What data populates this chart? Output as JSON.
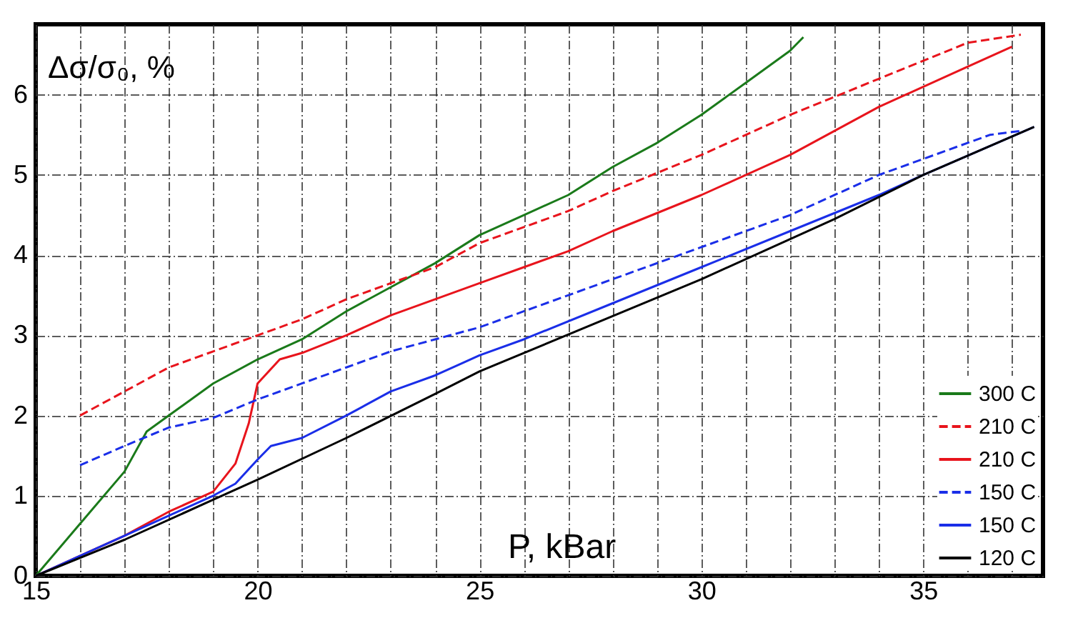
{
  "chart_data": {
    "type": "line",
    "xlabel": "P, kBar",
    "ylabel": "Δσ/σ₀, %",
    "xlim": [
      15,
      37.7
    ],
    "ylim": [
      0,
      6.88
    ],
    "xticks": [
      15,
      {
        "value": 16,
        "label": null
      },
      {
        "value": 17,
        "label": null
      },
      {
        "value": 18,
        "label": null
      },
      {
        "value": 19,
        "label": null
      },
      20,
      {
        "value": 21,
        "label": null
      },
      {
        "value": 22,
        "label": null
      },
      {
        "value": 23,
        "label": null
      },
      {
        "value": 24,
        "label": null
      },
      25,
      {
        "value": 26,
        "label": null
      },
      {
        "value": 27,
        "label": null
      },
      {
        "value": 28,
        "label": null
      },
      {
        "value": 29,
        "label": null
      },
      30,
      {
        "value": 31,
        "label": null
      },
      {
        "value": 32,
        "label": null
      },
      {
        "value": 33,
        "label": null
      },
      {
        "value": 34,
        "label": null
      },
      35,
      {
        "value": 36,
        "label": null
      },
      {
        "value": 37,
        "label": null
      }
    ],
    "yticks": [
      0,
      1,
      2,
      3,
      4,
      5,
      6
    ],
    "grid": true,
    "legend": "bottom right",
    "marker": "none",
    "series": [
      {
        "name": "300 C",
        "color": "#1a7a1a",
        "line_style": "solid",
        "x": [
          15,
          16,
          17,
          17.5,
          18,
          19,
          20,
          21,
          22,
          23,
          24,
          25,
          26,
          27,
          28,
          29,
          30,
          31,
          32,
          32.3
        ],
        "values": [
          0,
          0.65,
          1.3,
          1.8,
          2.0,
          2.4,
          2.7,
          2.95,
          3.3,
          3.6,
          3.9,
          4.25,
          4.5,
          4.75,
          5.1,
          5.4,
          5.75,
          6.15,
          6.55,
          6.72
        ]
      },
      {
        "name": "210 C",
        "color": "#e8141c",
        "line_style": "dashed",
        "x": [
          16,
          17,
          18,
          19,
          20,
          21,
          22,
          23,
          24,
          25,
          26,
          27,
          28,
          30,
          32,
          34,
          36,
          37.2
        ],
        "values": [
          2.0,
          2.3,
          2.6,
          2.8,
          3.0,
          3.2,
          3.45,
          3.65,
          3.85,
          4.15,
          4.35,
          4.55,
          4.8,
          5.25,
          5.75,
          6.2,
          6.65,
          6.75
        ]
      },
      {
        "name": "210 C",
        "color": "#e8141c",
        "line_style": "solid",
        "x": [
          15,
          17,
          18,
          19,
          19.5,
          19.8,
          20,
          20.5,
          21,
          22,
          23,
          24,
          25,
          26,
          27,
          28,
          30,
          32,
          34,
          36,
          37
        ],
        "values": [
          0,
          0.5,
          0.8,
          1.05,
          1.4,
          1.9,
          2.4,
          2.7,
          2.78,
          3.0,
          3.25,
          3.45,
          3.65,
          3.85,
          4.05,
          4.3,
          4.75,
          5.25,
          5.85,
          6.35,
          6.6
        ]
      },
      {
        "name": "150 C",
        "color": "#1a2ee8",
        "line_style": "dashed",
        "x": [
          16,
          17,
          18,
          19,
          20,
          21,
          22,
          23,
          24,
          25,
          26,
          28,
          30,
          32,
          34,
          35,
          36.5,
          37.2
        ],
        "values": [
          1.38,
          1.62,
          1.85,
          1.97,
          2.2,
          2.4,
          2.6,
          2.8,
          2.95,
          3.1,
          3.3,
          3.7,
          4.1,
          4.5,
          5.0,
          5.2,
          5.5,
          5.55
        ]
      },
      {
        "name": "150 C",
        "color": "#1a2ee8",
        "line_style": "solid",
        "x": [
          15,
          17,
          19,
          19.5,
          20,
          20.3,
          21,
          22,
          23,
          24,
          25,
          26,
          28,
          30,
          32,
          34,
          35,
          37.5
        ],
        "values": [
          0,
          0.5,
          1.0,
          1.15,
          1.45,
          1.62,
          1.72,
          2.0,
          2.3,
          2.5,
          2.75,
          2.95,
          3.4,
          3.85,
          4.3,
          4.75,
          5.0,
          5.6
        ]
      },
      {
        "name": "120 C",
        "color": "#000000",
        "line_style": "solid",
        "x": [
          15,
          17,
          19,
          20,
          22,
          24,
          25,
          30,
          33,
          35,
          37.5
        ],
        "values": [
          0,
          0.45,
          0.95,
          1.2,
          1.72,
          2.27,
          2.55,
          3.7,
          4.45,
          5.0,
          5.6
        ]
      }
    ]
  }
}
